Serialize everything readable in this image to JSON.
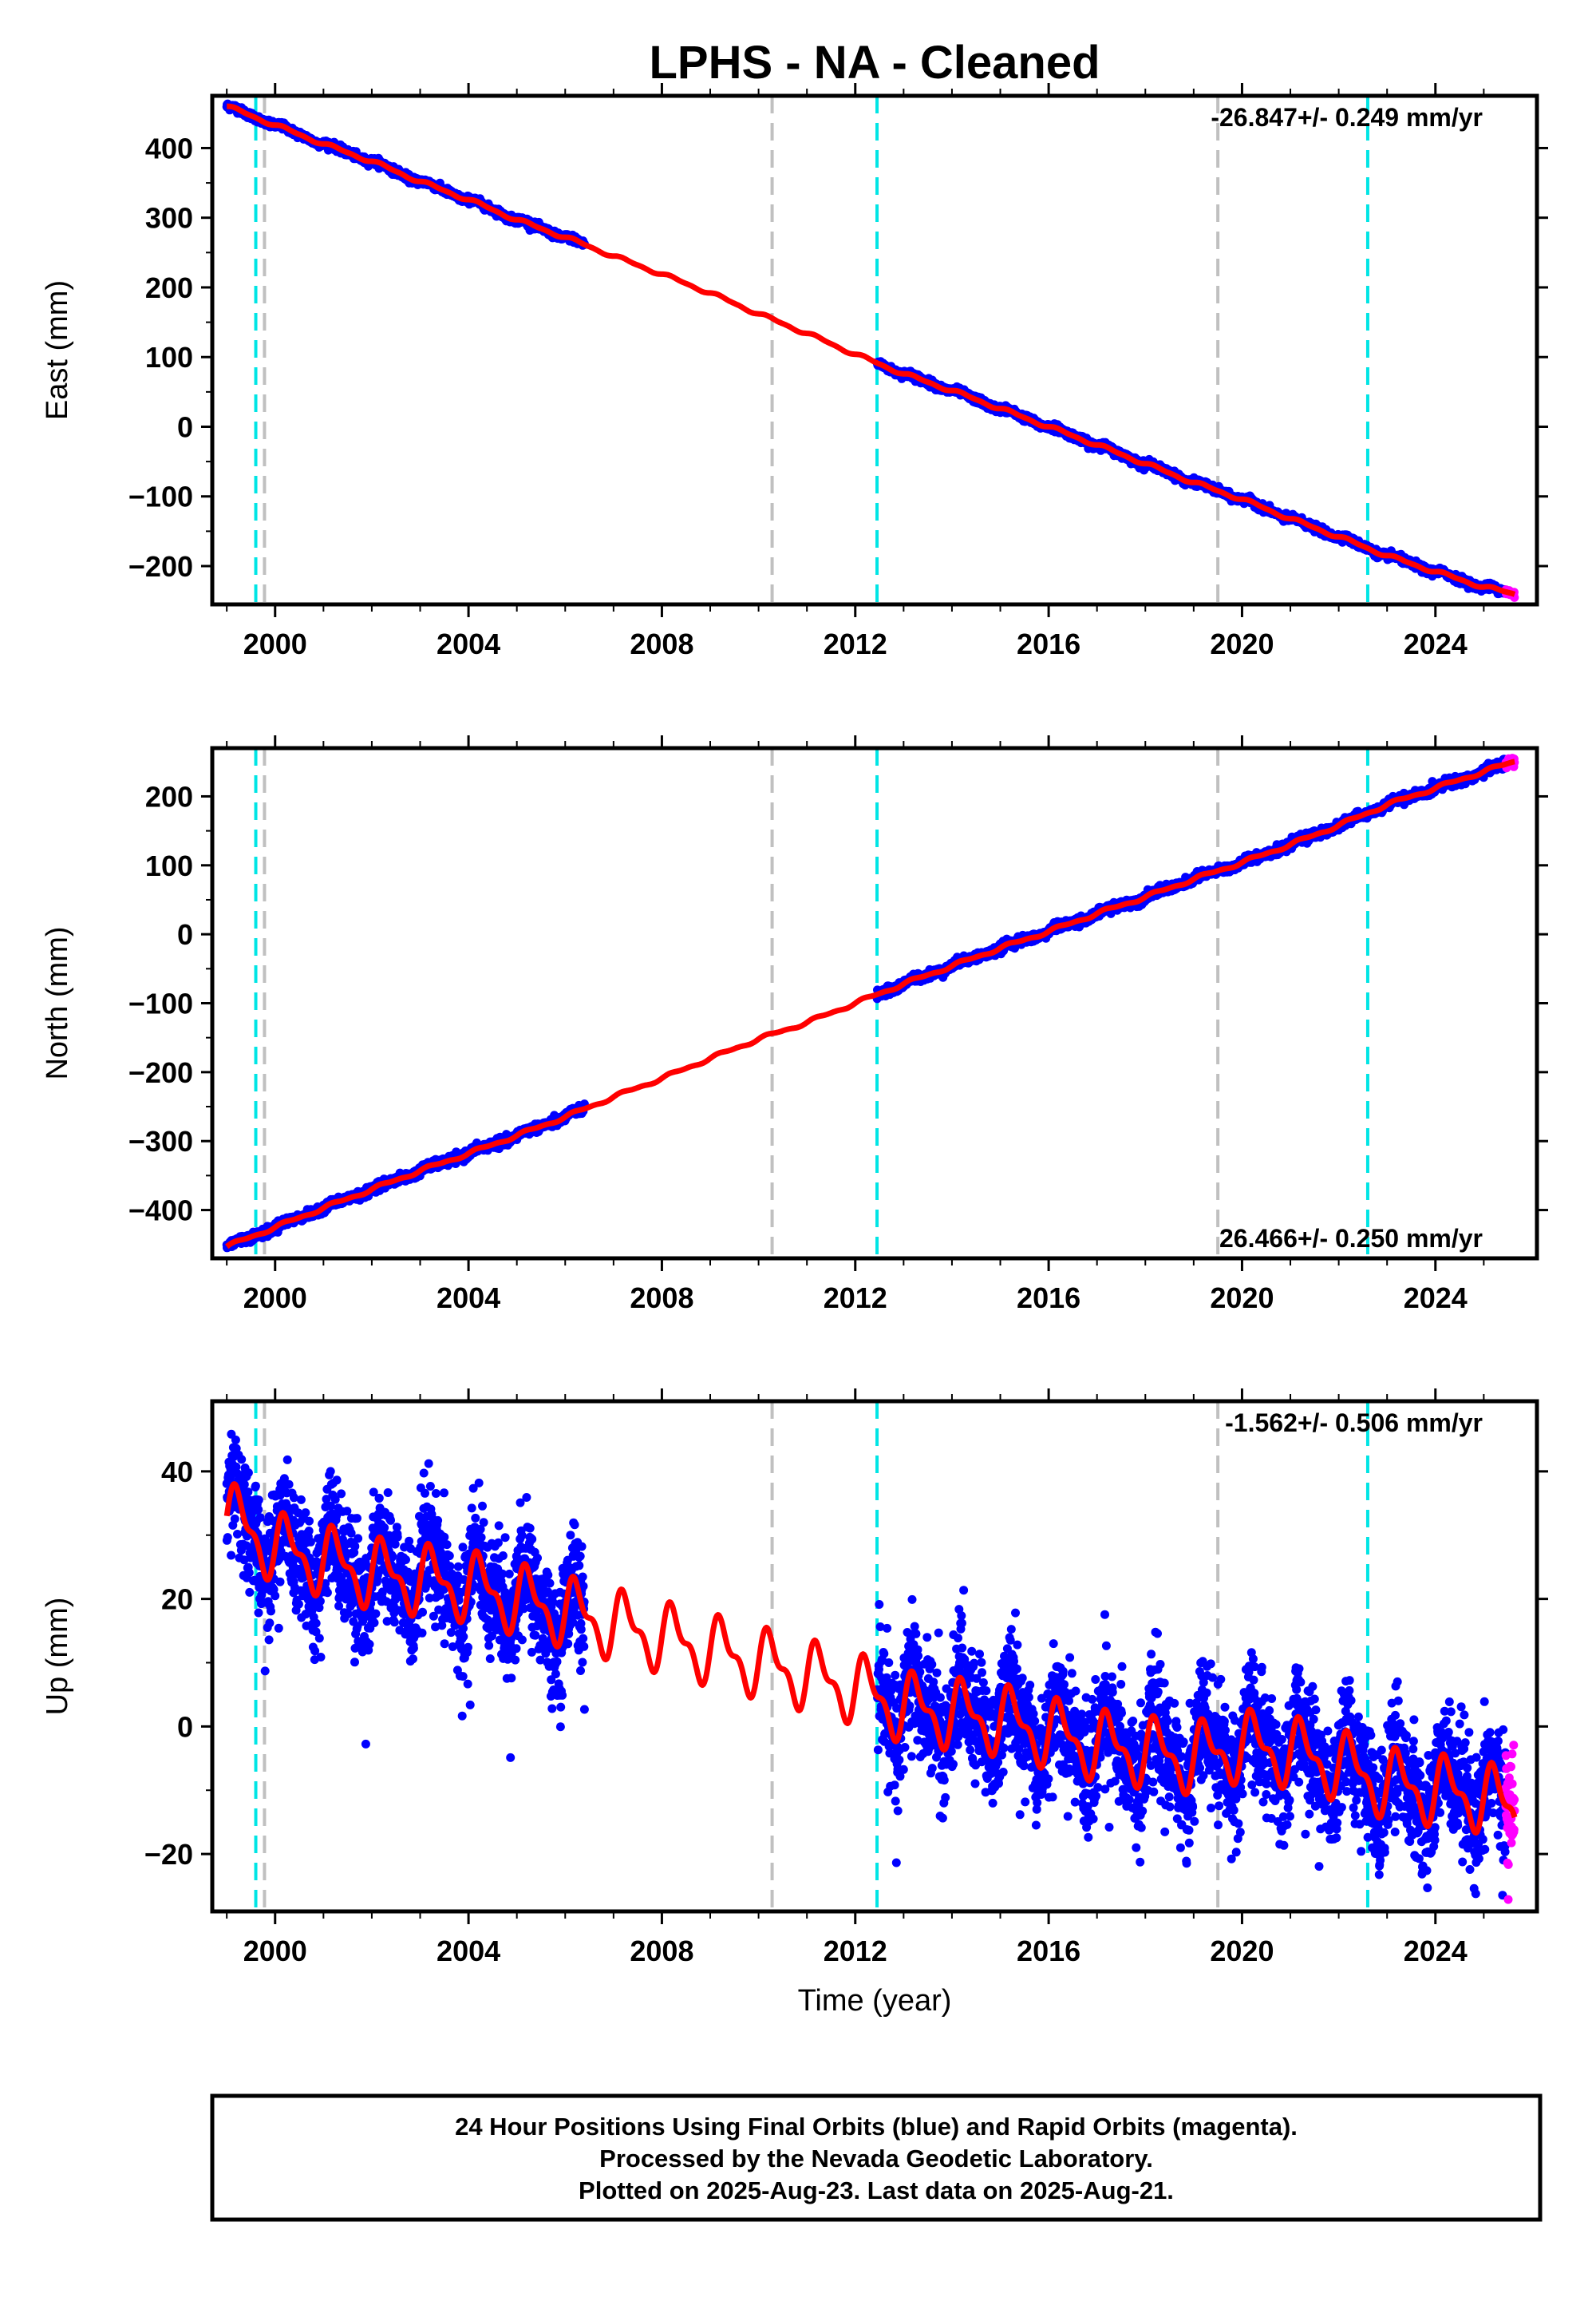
{
  "title": "LPHS  - NA - Cleaned",
  "xlabel": "Time (year)",
  "x_tick_labels": [
    "2000",
    "2004",
    "2008",
    "2012",
    "2016",
    "2020",
    "2024"
  ],
  "colors": {
    "final_orbits": "#0000ff",
    "rapid_orbits": "#ff00ff",
    "model_fit": "#ff0000",
    "equipment_change": "#00e5e5",
    "other_event": "#c0c0c0"
  },
  "footer": {
    "line1": "24 Hour Positions Using Final Orbits (blue) and Rapid Orbits (magenta).",
    "line2": "Processed by the Nevada Geodetic Laboratory.",
    "line3": "Plotted on 2025-Aug-23. Last data on 2025-Aug-21."
  },
  "chart_data": [
    {
      "type": "scatter",
      "name": "east",
      "ylabel": "East (mm)",
      "rate_text": "-26.847+/- 0.249 mm/yr",
      "rate_position": "top-right",
      "xlim": [
        1998.7,
        2026.1
      ],
      "ylim": [
        -255,
        475
      ],
      "y_tick_labels": [
        "400",
        "300",
        "200",
        "100",
        "0",
        "−100",
        "−200"
      ],
      "y_ticks": [
        400,
        300,
        200,
        100,
        0,
        -100,
        -200
      ],
      "x_ticks": [
        2000,
        2004,
        2008,
        2012,
        2016,
        2020,
        2024
      ],
      "cyan_event_lines": [
        1999.6,
        2012.45,
        2022.6
      ],
      "gray_event_lines": [
        1999.78,
        2010.28,
        2019.5
      ],
      "data_gap": [
        2006.4,
        2012.45
      ],
      "first_data_year": 1999.0,
      "last_data_year": 2025.64,
      "rapid_orbit_start": 2025.45,
      "fit": {
        "points": [
          [
            1999.0,
            460
          ],
          [
            2000.0,
            433
          ],
          [
            2001.0,
            406
          ],
          [
            2002.0,
            381
          ],
          [
            2003.0,
            352
          ],
          [
            2004.0,
            326
          ],
          [
            2005.0,
            297
          ],
          [
            2006.0,
            272
          ],
          [
            2007.0,
            245
          ],
          [
            2008.0,
            219
          ],
          [
            2009.0,
            192
          ],
          [
            2010.0,
            162
          ],
          [
            2011.0,
            134
          ],
          [
            2012.0,
            104
          ],
          [
            2013.0,
            76
          ],
          [
            2014.0,
            52
          ],
          [
            2015.0,
            26
          ],
          [
            2016.0,
            0
          ],
          [
            2017.0,
            -26
          ],
          [
            2018.0,
            -53
          ],
          [
            2019.0,
            -80
          ],
          [
            2020.0,
            -104
          ],
          [
            2021.0,
            -132
          ],
          [
            2022.0,
            -158
          ],
          [
            2023.0,
            -185
          ],
          [
            2024.0,
            -208
          ],
          [
            2025.0,
            -230
          ],
          [
            2025.64,
            -240
          ]
        ],
        "seasonal_amplitude": 2
      },
      "scatter_noise_sd": 2.5
    },
    {
      "type": "scatter",
      "name": "north",
      "ylabel": "North (mm)",
      "rate_text": "26.466+/- 0.250 mm/yr",
      "rate_position": "bottom-right",
      "xlim": [
        1998.7,
        2026.1
      ],
      "ylim": [
        -470,
        270
      ],
      "y_tick_labels": [
        "200",
        "100",
        "0",
        "−100",
        "−200",
        "−300",
        "−400"
      ],
      "y_ticks": [
        200,
        100,
        0,
        -100,
        -200,
        -300,
        -400
      ],
      "x_ticks": [
        2000,
        2004,
        2008,
        2012,
        2016,
        2020,
        2024
      ],
      "cyan_event_lines": [
        1999.6,
        2012.45,
        2022.6
      ],
      "gray_event_lines": [
        1999.78,
        2010.28,
        2019.5
      ],
      "data_gap": [
        2006.4,
        2012.45
      ],
      "first_data_year": 1999.0,
      "last_data_year": 2025.64,
      "rapid_orbit_start": 2025.45,
      "fit": {
        "points": [
          [
            1999.0,
            -453
          ],
          [
            2000.0,
            -425
          ],
          [
            2001.0,
            -397
          ],
          [
            2002.0,
            -370
          ],
          [
            2003.0,
            -343
          ],
          [
            2004.0,
            -318
          ],
          [
            2005.0,
            -292
          ],
          [
            2006.0,
            -265
          ],
          [
            2007.0,
            -236
          ],
          [
            2008.0,
            -209
          ],
          [
            2009.0,
            -180
          ],
          [
            2010.0,
            -152
          ],
          [
            2011.0,
            -128
          ],
          [
            2012.0,
            -100
          ],
          [
            2013.0,
            -72
          ],
          [
            2014.0,
            -46
          ],
          [
            2015.0,
            -20
          ],
          [
            2016.0,
            4
          ],
          [
            2017.0,
            30
          ],
          [
            2018.0,
            54
          ],
          [
            2019.0,
            80
          ],
          [
            2020.0,
            104
          ],
          [
            2021.0,
            130
          ],
          [
            2022.0,
            158
          ],
          [
            2023.0,
            188
          ],
          [
            2024.0,
            212
          ],
          [
            2025.0,
            236
          ],
          [
            2025.64,
            251
          ]
        ],
        "seasonal_amplitude": 2
      },
      "scatter_noise_sd": 3
    },
    {
      "type": "scatter",
      "name": "up",
      "ylabel": "Up (mm)",
      "rate_text": "-1.562+/- 0.506 mm/yr",
      "rate_position": "top-right",
      "xlim": [
        1998.7,
        2026.1
      ],
      "ylim": [
        -29,
        51
      ],
      "y_tick_labels": [
        "40",
        "20",
        "0",
        "−20"
      ],
      "y_ticks": [
        40,
        20,
        0,
        -20
      ],
      "x_ticks": [
        2000,
        2004,
        2008,
        2012,
        2016,
        2020,
        2024
      ],
      "cyan_event_lines": [
        1999.6,
        2012.45,
        2022.6
      ],
      "gray_event_lines": [
        1999.78,
        2010.28,
        2019.5
      ],
      "data_gap": [
        2006.4,
        2012.45
      ],
      "first_data_year": 1999.0,
      "last_data_year": 2025.64,
      "rapid_orbit_start": 2025.45,
      "fit": {
        "points": [
          [
            1999.0,
            33
          ],
          [
            2000.0,
            28
          ],
          [
            2001.0,
            26
          ],
          [
            2002.0,
            24
          ],
          [
            2003.0,
            23
          ],
          [
            2004.0,
            22
          ],
          [
            2005.0,
            20
          ],
          [
            2006.0,
            18
          ],
          [
            2007.0,
            16
          ],
          [
            2008.0,
            14
          ],
          [
            2009.0,
            12
          ],
          [
            2010.0,
            10
          ],
          [
            2011.0,
            8
          ],
          [
            2012.0,
            6
          ],
          [
            2013.0,
            3
          ],
          [
            2014.0,
            2
          ],
          [
            2015.0,
            1
          ],
          [
            2016.0,
            -1
          ],
          [
            2017.0,
            -3
          ],
          [
            2018.0,
            -4
          ],
          [
            2019.0,
            -5
          ],
          [
            2020.0,
            -3
          ],
          [
            2021.0,
            -4
          ],
          [
            2022.0,
            -6
          ],
          [
            2023.0,
            -9
          ],
          [
            2024.0,
            -10
          ],
          [
            2025.0,
            -11
          ],
          [
            2025.64,
            -13
          ]
        ],
        "seasonal_amplitude": 4.5
      },
      "scatter_noise_sd": 4.5
    }
  ]
}
